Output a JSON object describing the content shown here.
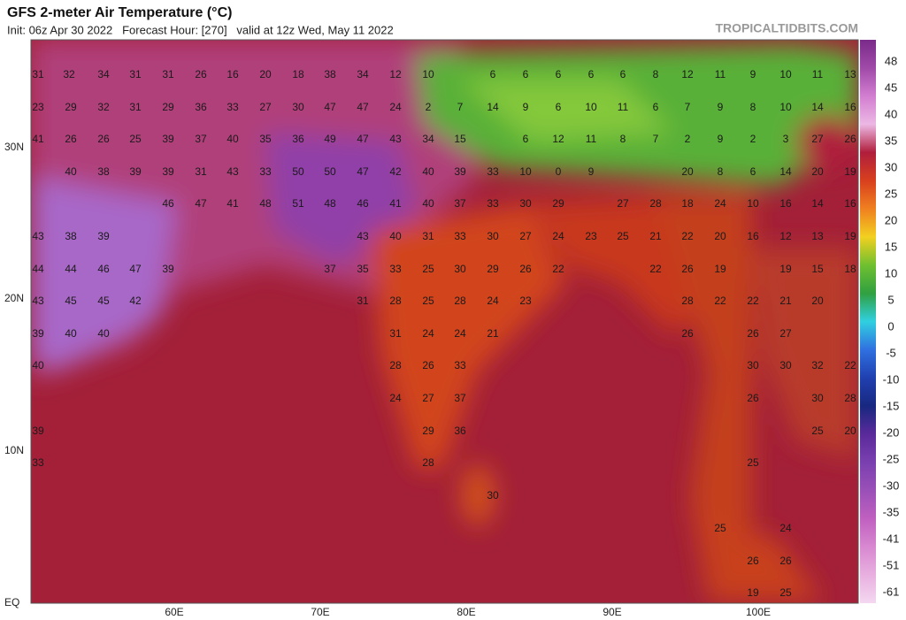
{
  "header": {
    "title": "GFS 2-meter Air Temperature (°C)",
    "subtitle": "Init: 06z Apr 30 2022   Forecast Hour: [270]   valid at 12z Wed, May 11 2022",
    "site": "TROPICALTIDBITS.COM"
  },
  "axes": {
    "lat_labels": [
      "30N",
      "20N",
      "10N",
      "EQ"
    ],
    "lon_labels": [
      "60E",
      "70E",
      "80E",
      "90E",
      "100E"
    ]
  },
  "colorbar": {
    "ticks": [
      48,
      45,
      40,
      35,
      30,
      25,
      20,
      15,
      10,
      5,
      0,
      -5,
      -10,
      -15,
      -20,
      -25,
      -30,
      -35,
      -41,
      -51,
      -61
    ],
    "colors": [
      "#7a2a8a",
      "#a04aa8",
      "#d27ed0",
      "#ecb8e4",
      "#b01e3c",
      "#d8401e",
      "#f08020",
      "#f2d020",
      "#70c030",
      "#30a040",
      "#30d0e0",
      "#3070e0",
      "#2040b0",
      "#182880",
      "#5a2a9a",
      "#7a40b0",
      "#9a50b8",
      "#c060c0",
      "#d888d0",
      "#e8b0e0",
      "#f4d8f0"
    ]
  },
  "map_labels": [
    [
      31,
      32,
      34,
      31,
      31,
      26,
      16,
      20,
      18,
      38,
      34,
      12,
      10,
      6,
      6,
      6,
      6,
      6,
      8,
      12,
      11,
      9,
      10,
      11,
      13
    ],
    [
      23,
      29,
      32,
      31,
      29,
      36,
      33,
      27,
      30,
      47,
      47,
      24,
      2,
      7,
      14,
      9,
      6,
      10,
      11,
      6,
      7,
      9,
      8,
      10,
      14,
      16
    ],
    [
      41,
      26,
      26,
      25,
      39,
      37,
      40,
      35,
      36,
      49,
      47,
      43,
      34,
      15,
      6,
      12,
      11,
      8,
      7,
      2,
      9,
      2,
      3,
      27,
      26
    ],
    [
      40,
      38,
      39,
      39,
      31,
      43,
      33,
      50,
      50,
      47,
      42,
      40,
      39,
      33,
      10,
      0,
      9,
      20,
      8,
      6,
      14,
      20,
      19
    ],
    [
      46,
      47,
      41,
      48,
      51,
      48,
      46,
      41,
      40,
      37,
      33,
      30,
      29,
      27,
      28,
      18,
      24,
      10,
      16,
      14,
      16
    ],
    [
      43,
      38,
      39,
      43,
      40,
      31,
      33,
      30,
      27,
      24,
      23,
      25,
      21,
      22,
      20,
      16,
      12,
      13,
      19
    ],
    [
      44,
      44,
      46,
      47,
      39,
      37,
      35,
      33,
      25,
      30,
      29,
      26,
      22,
      22,
      26,
      19,
      19,
      15,
      18
    ],
    [
      43,
      45,
      45,
      42,
      31,
      28,
      25,
      28,
      24,
      23,
      28,
      22,
      22,
      21,
      20
    ],
    [
      39,
      40,
      40,
      31,
      24,
      24,
      21,
      26,
      26,
      27
    ],
    [
      40,
      28,
      26,
      33,
      30,
      30,
      32,
      22
    ],
    [
      24,
      27,
      37,
      26,
      30,
      28
    ],
    [
      39,
      29,
      36,
      25,
      20
    ],
    [
      33,
      28,
      25
    ],
    [
      30
    ],
    [
      25,
      24
    ],
    [
      26,
      26
    ],
    [
      19,
      25
    ]
  ]
}
